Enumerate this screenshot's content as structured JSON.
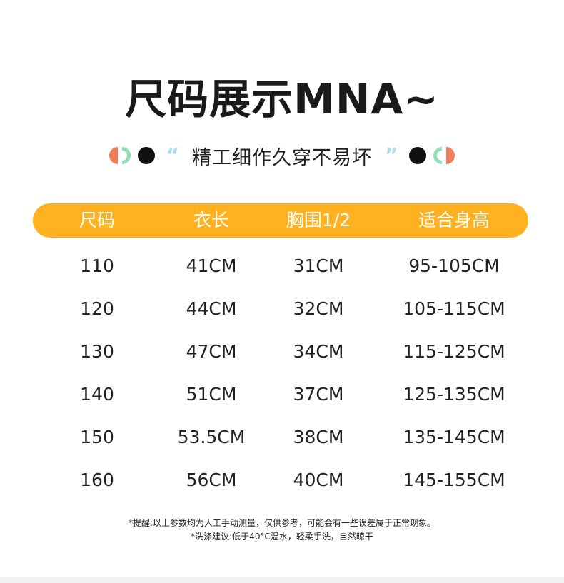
{
  "title": "尺码展示MNA~",
  "subtitle": {
    "open_quote": "“",
    "text": "精工细作久穿不易坏",
    "close_quote": "”"
  },
  "colors": {
    "header_bg": "#ffb11f",
    "accent_orange": "#f07c5a",
    "accent_mint": "#8fe0b8",
    "quote_blue": "#a8dcef"
  },
  "table": {
    "headers": [
      "尺码",
      "衣长",
      "胸围1/2",
      "适合身高"
    ],
    "rows": [
      [
        "110",
        "41CM",
        "31CM",
        "95-105CM"
      ],
      [
        "120",
        "44CM",
        "32CM",
        "105-115CM"
      ],
      [
        "130",
        "47CM",
        "34CM",
        "115-125CM"
      ],
      [
        "140",
        "51CM",
        "37CM",
        "125-135CM"
      ],
      [
        "150",
        "53.5CM",
        "38CM",
        "135-145CM"
      ],
      [
        "160",
        "56CM",
        "40CM",
        "145-155CM"
      ]
    ]
  },
  "notes": [
    "*提醒:以上参数均为人工手动测量，仅供参考，可能会有一些误差属于正常现象。",
    "*洗涤建议:低于40°C温水，轻柔手洗，自然晾干"
  ]
}
